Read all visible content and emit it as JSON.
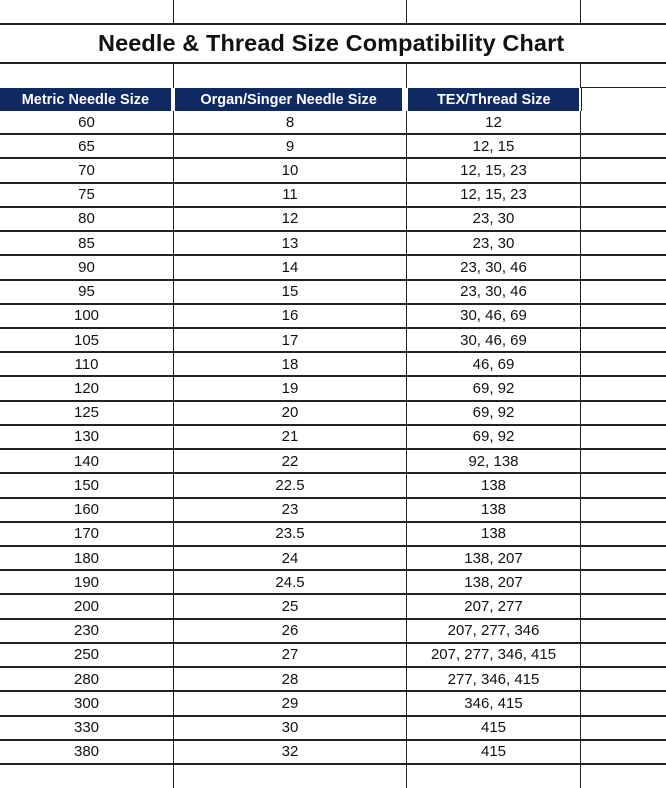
{
  "title": "Needle & Thread Size Compatibility Chart",
  "header_color": "#0f2a60",
  "columns": [
    "Metric Needle Size",
    "Organ/Singer Needle Size",
    "TEX/Thread Size"
  ],
  "rows": [
    [
      "60",
      "8",
      "12"
    ],
    [
      "65",
      "9",
      "12, 15"
    ],
    [
      "70",
      "10",
      "12, 15, 23"
    ],
    [
      "75",
      "11",
      "12, 15, 23"
    ],
    [
      "80",
      "12",
      "23, 30"
    ],
    [
      "85",
      "13",
      "23, 30"
    ],
    [
      "90",
      "14",
      "23, 30, 46"
    ],
    [
      "95",
      "15",
      "23, 30, 46"
    ],
    [
      "100",
      "16",
      "30, 46, 69"
    ],
    [
      "105",
      "17",
      "30, 46, 69"
    ],
    [
      "110",
      "18",
      "46, 69"
    ],
    [
      "120",
      "19",
      "69, 92"
    ],
    [
      "125",
      "20",
      "69, 92"
    ],
    [
      "130",
      "21",
      "69, 92"
    ],
    [
      "140",
      "22",
      "92, 138"
    ],
    [
      "150",
      "22.5",
      "138"
    ],
    [
      "160",
      "23",
      "138"
    ],
    [
      "170",
      "23.5",
      "138"
    ],
    [
      "180",
      "24",
      "138, 207"
    ],
    [
      "190",
      "24.5",
      "138, 207"
    ],
    [
      "200",
      "25",
      "207, 277"
    ],
    [
      "230",
      "26",
      "207, 277, 346"
    ],
    [
      "250",
      "27",
      "207, 277, 346, 415"
    ],
    [
      "280",
      "28",
      "277, 346, 415"
    ],
    [
      "300",
      "29",
      "346, 415"
    ],
    [
      "330",
      "30",
      "415"
    ],
    [
      "380",
      "32",
      "415"
    ]
  ]
}
